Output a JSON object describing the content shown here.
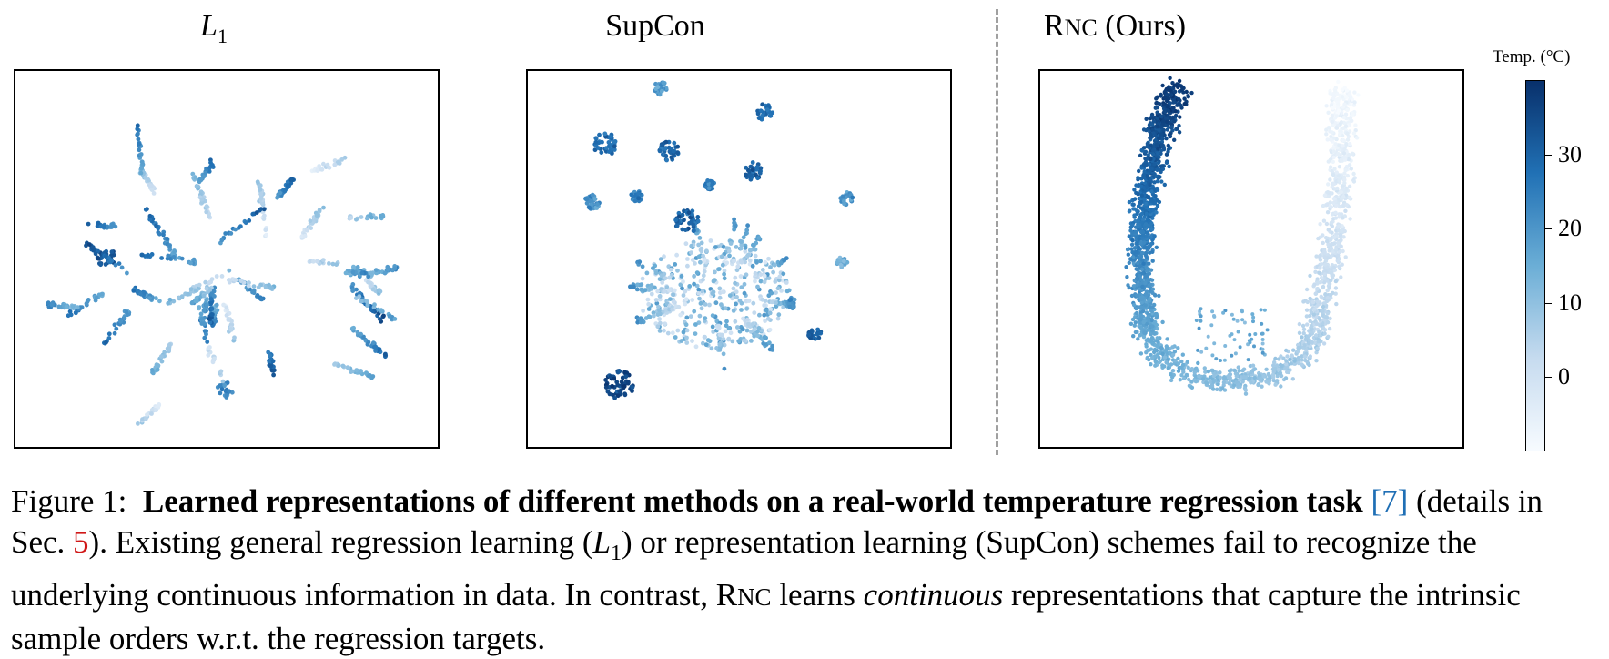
{
  "panels": [
    {
      "title_main": "L",
      "title_sub": "1"
    },
    {
      "title": "SupCon"
    },
    {
      "title_r": "R",
      "title_nc": "NC",
      "title_rest": " (Ours)"
    }
  ],
  "colorbar": {
    "label": "Temp. (°C)",
    "ticks": [
      "30",
      "20",
      "10",
      "0"
    ],
    "tick_values": [
      30,
      20,
      10,
      0
    ],
    "range": [
      -10,
      40
    ],
    "colormap": [
      "#f7fbff",
      "#c6dbef",
      "#6baed6",
      "#2171b5",
      "#08306b"
    ]
  },
  "caption": {
    "label": "Figure 1:",
    "bold": "Learned representations of different methods on a real-world temperature regression task",
    "ref1": "[7]",
    "t1": "(details in Sec. ",
    "ref2": "5",
    "t2": "). Existing general regression learning (",
    "l1_main": "L",
    "l1_sub": "1",
    "t3": ") or representation learning (SupCon) schemes fail to recognize the underlying continuous information in data. In contrast, ",
    "rnc_r": "R",
    "rnc_nc": "NC",
    "t4": " learns ",
    "italic": "continuous",
    "t5": " representations that capture the intrinsic sample orders w.r.t. the regression targets."
  },
  "chart_data": {
    "type": "scatter",
    "colorscale_label": "Temp. (°C)",
    "note": ""
  }
}
